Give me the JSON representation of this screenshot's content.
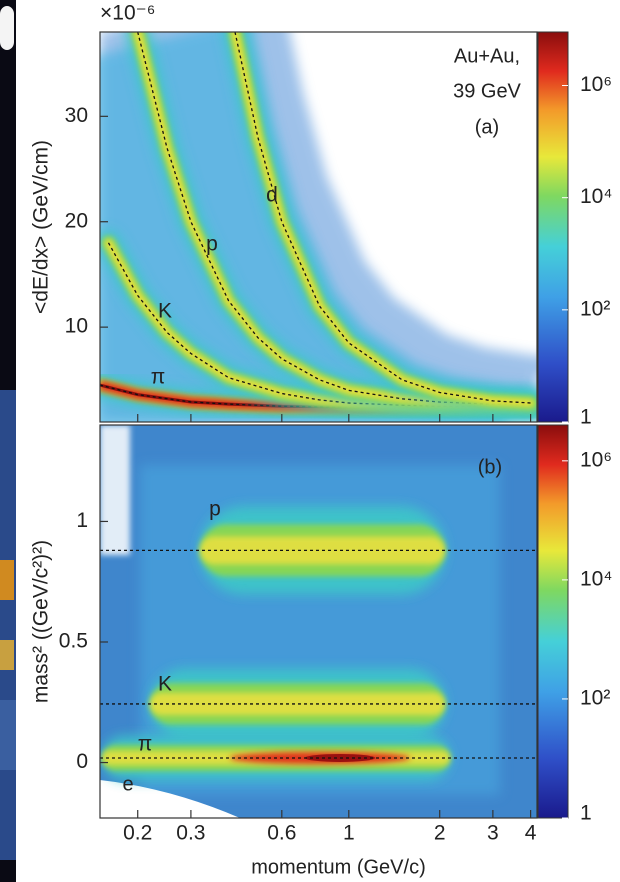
{
  "chart_data": [
    {
      "type": "curves",
      "y_label": "<dE/dx> (GeV/cm)",
      "y_multiplier": "×10⁻⁶",
      "annotations": [
        "Au+Au,",
        "39 GeV",
        "(a)"
      ],
      "log_x": true,
      "xlim": [
        0.15,
        4.2
      ],
      "ylim": [
        1,
        38
      ],
      "yticks": [
        10,
        20,
        30
      ],
      "series": [
        {
          "name": "π",
          "x": [
            0.15,
            0.2,
            0.3,
            0.4,
            0.6,
            0.8,
            1,
            1.5,
            2,
            3,
            4
          ],
          "values": [
            4.5,
            3.6,
            2.9,
            2.7,
            2.5,
            2.45,
            2.4,
            2.4,
            2.4,
            2.4,
            2.4
          ]
        },
        {
          "name": "K",
          "x": [
            0.16,
            0.2,
            0.25,
            0.3,
            0.4,
            0.6,
            0.8,
            1,
            1.5,
            2,
            3,
            4
          ],
          "values": [
            18,
            13,
            9.5,
            7.5,
            5.2,
            3.7,
            3.1,
            2.8,
            2.6,
            2.5,
            2.5,
            2.5
          ]
        },
        {
          "name": "p",
          "x": [
            0.2,
            0.25,
            0.3,
            0.4,
            0.5,
            0.6,
            0.8,
            1,
            1.5,
            2,
            3,
            4
          ],
          "values": [
            38,
            27,
            20,
            12.5,
            9,
            7,
            5,
            4,
            3.2,
            2.9,
            2.7,
            2.6
          ]
        },
        {
          "name": "d",
          "x": [
            0.42,
            0.5,
            0.6,
            0.8,
            1,
            1.5,
            2,
            3,
            4
          ],
          "values": [
            38,
            28,
            20,
            12,
            8.5,
            5,
            3.8,
            3,
            2.8
          ]
        }
      ],
      "colorbar": {
        "log": true,
        "lim": [
          1,
          9000000
        ],
        "ticks": [
          1,
          {
            "value": 100,
            "label": "10²"
          },
          {
            "value": 10000,
            "label": "10⁴"
          },
          {
            "value": 1000000,
            "label": "10⁶"
          }
        ]
      }
    },
    {
      "type": "bands",
      "y_label": "mass² ((GeV/c²)²)",
      "x_label": "momentum (GeV/c)",
      "annotations": [
        "(b)",
        "e"
      ],
      "log_x": true,
      "xlim": [
        0.15,
        4.2
      ],
      "xticks": [
        0.2,
        0.3,
        0.6,
        1,
        2,
        3,
        4
      ],
      "ylim": [
        -0.23,
        1.4
      ],
      "yticks": [
        0,
        0.5,
        1
      ],
      "series": [
        {
          "name": "p",
          "value": 0.88
        },
        {
          "name": "K",
          "value": 0.243
        },
        {
          "name": "π",
          "value": 0.019
        }
      ],
      "colorbar": {
        "log": true,
        "lim": [
          1,
          4000000
        ],
        "ticks": [
          1,
          {
            "value": 100,
            "label": "10²"
          },
          {
            "value": 10000,
            "label": "10⁴"
          },
          {
            "value": 1000000,
            "label": "10⁶"
          }
        ]
      }
    }
  ]
}
